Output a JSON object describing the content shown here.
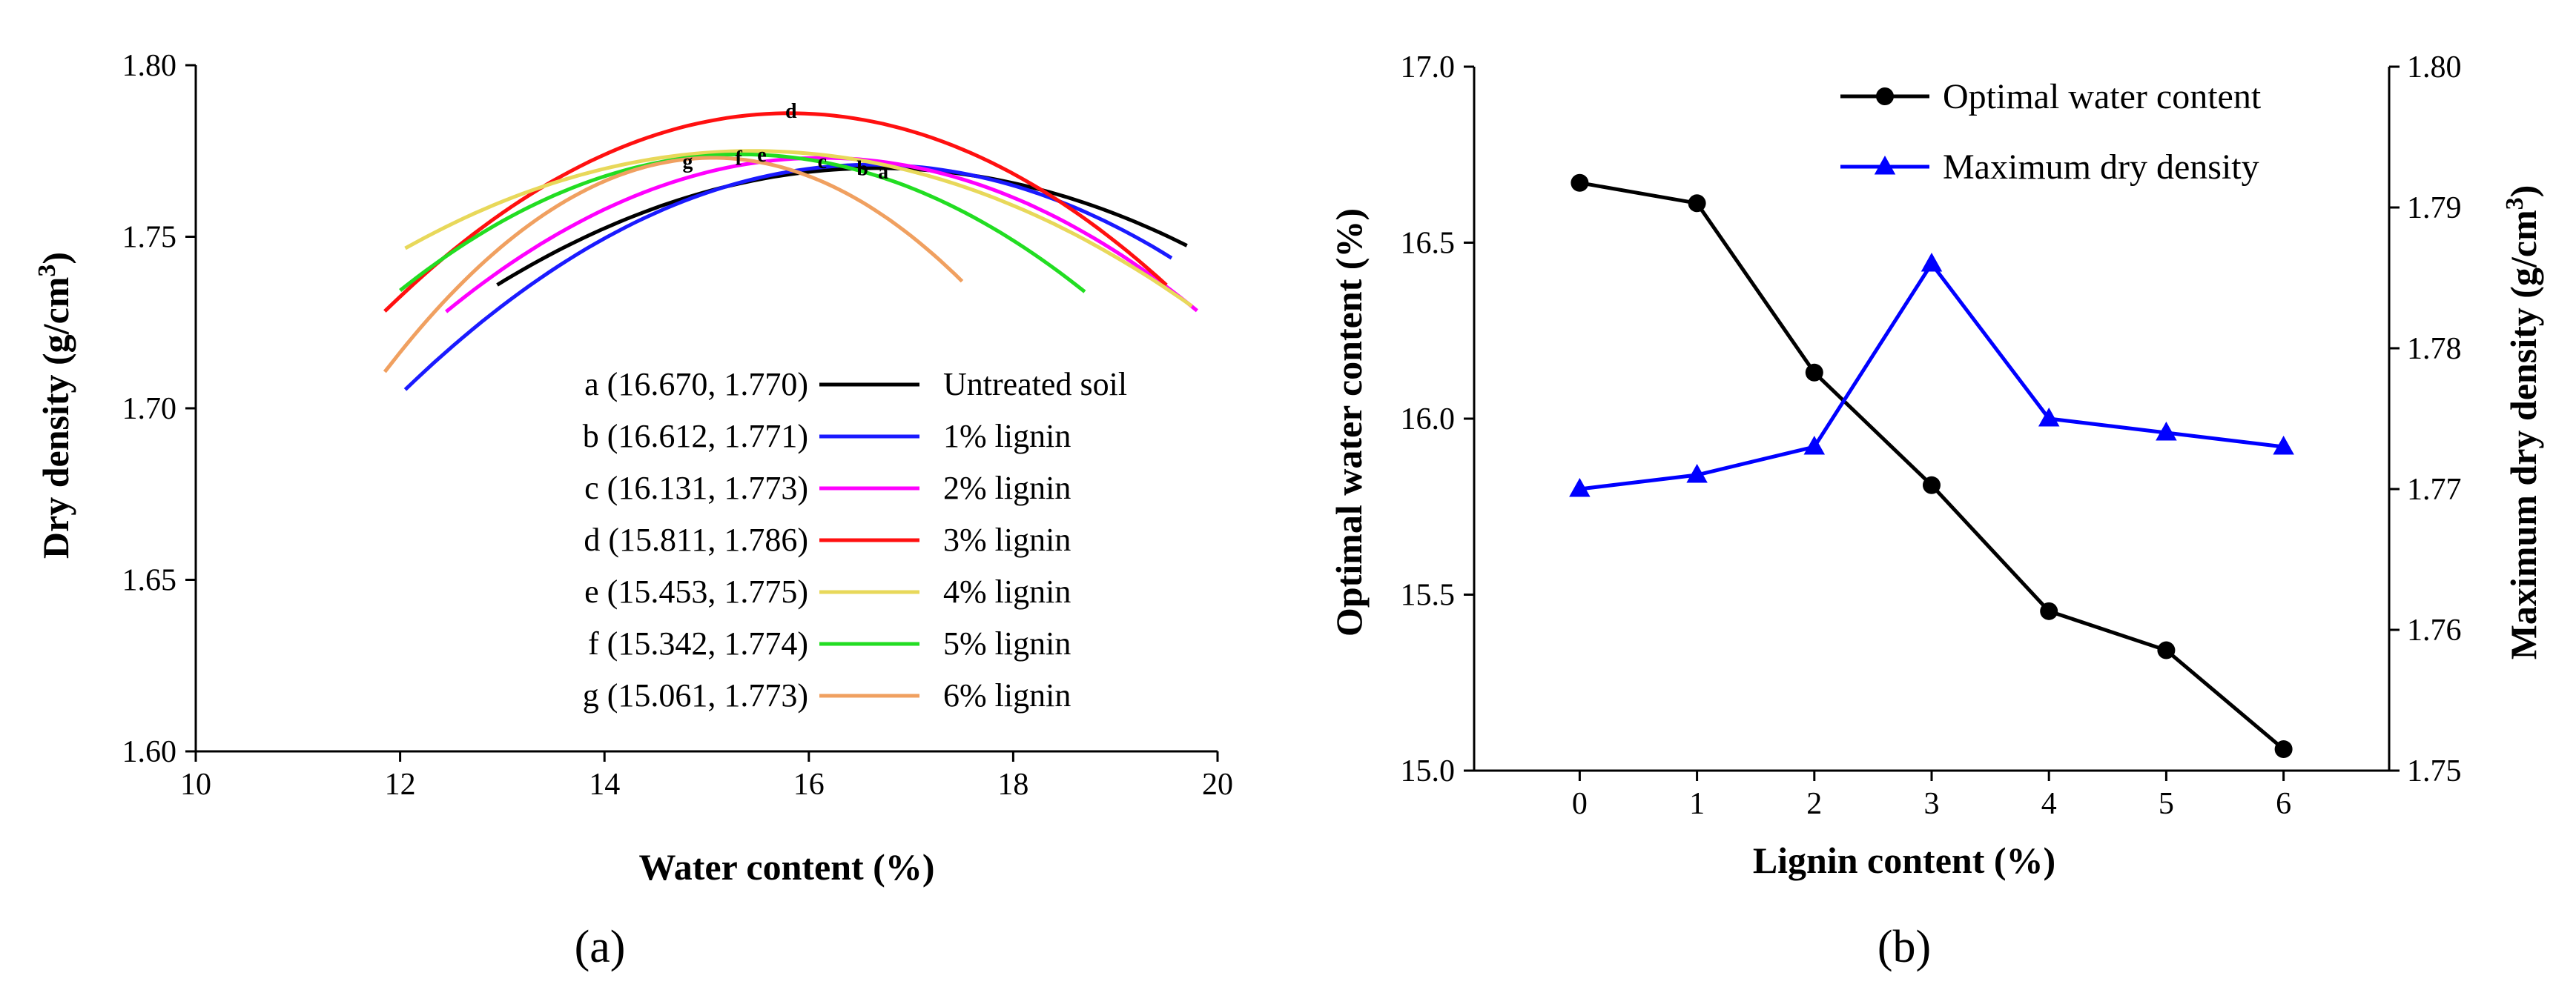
{
  "chart_data": [
    {
      "id": "a",
      "type": "line",
      "panel_label": "(a)",
      "xlabel": "Water content (%)",
      "ylabel": "Dry density (g/cm",
      "ylabel_sup": "3",
      "ylabel_end": ")",
      "xlim": [
        10,
        20
      ],
      "ylim": [
        1.6,
        1.8
      ],
      "xticks": [
        "10",
        "12",
        "14",
        "16",
        "18",
        "20"
      ],
      "yticks": [
        "1.60",
        "1.65",
        "1.70",
        "1.75",
        "1.80"
      ],
      "series": [
        {
          "name": "Untreated soil",
          "key": "a (16.670, 1.770)",
          "point_label": "a",
          "peak": [
            16.67,
            1.77
          ],
          "range": [
            12.95,
            19.7
          ],
          "curv": 0.00246,
          "color": "#000000"
        },
        {
          "name": "1% lignin",
          "key": "b (16.612, 1.771)",
          "point_label": "b",
          "peak": [
            16.612,
            1.771
          ],
          "range": [
            12.05,
            19.55
          ],
          "curv": 0.00315,
          "color": "#1a1aff"
        },
        {
          "name": "2% lignin",
          "key": "c (16.131, 1.773)",
          "point_label": "c",
          "peak": [
            16.131,
            1.773
          ],
          "range": [
            12.45,
            19.8
          ],
          "curv": 0.00331,
          "color": "#ff00ff"
        },
        {
          "name": "3% lignin",
          "key": "d (15.811, 1.786)",
          "point_label": "d",
          "peak": [
            15.811,
            1.786
          ],
          "range": [
            11.85,
            19.5
          ],
          "curv": 0.00368,
          "color": "#ff1010"
        },
        {
          "name": "4% lignin",
          "key": "e (15.453, 1.775)",
          "point_label": "e",
          "peak": [
            15.453,
            1.775
          ],
          "range": [
            12.05,
            19.75
          ],
          "curv": 0.00245,
          "color": "#e8d85a"
        },
        {
          "name": "5% lignin",
          "key": "f (15.342, 1.774)",
          "point_label": "f",
          "peak": [
            15.342,
            1.774
          ],
          "range": [
            12.0,
            18.7
          ],
          "curv": 0.00355,
          "color": "#22dd22"
        },
        {
          "name": "6% lignin",
          "key": "g (15.061, 1.773)",
          "point_label": "g",
          "peak": [
            15.061,
            1.773
          ],
          "range": [
            11.85,
            17.5
          ],
          "curv": 0.00605,
          "color": "#f0a060"
        }
      ]
    },
    {
      "id": "b",
      "type": "line",
      "panel_label": "(b)",
      "xlabel": "Lignin content (%)",
      "ylabel_left": "Optimal water content (%)",
      "ylabel_right": "Maximum dry density (g/cm",
      "ylabel_right_sup": "3",
      "ylabel_right_end": ")",
      "categories": [
        "0",
        "1",
        "2",
        "3",
        "4",
        "5",
        "6"
      ],
      "x": [
        0,
        1,
        2,
        3,
        4,
        5,
        6
      ],
      "xlim": [
        -0.9,
        6.9
      ],
      "ylim_left": [
        15.0,
        17.0
      ],
      "ylim_right": [
        1.75,
        1.8
      ],
      "yticks_left": [
        "15.0",
        "15.5",
        "16.0",
        "16.5",
        "17.0"
      ],
      "yticks_right": [
        "1.75",
        "1.76",
        "1.77",
        "1.78",
        "1.79",
        "1.80"
      ],
      "series": [
        {
          "name": "Optimal water content",
          "axis": "left",
          "marker": "circle",
          "color": "#000000",
          "values": [
            16.67,
            16.612,
            16.131,
            15.811,
            15.453,
            15.342,
            15.061
          ]
        },
        {
          "name": "Maximum dry density",
          "axis": "right",
          "marker": "triangle",
          "color": "#0000ff",
          "values": [
            1.77,
            1.771,
            1.773,
            1.786,
            1.775,
            1.774,
            1.773
          ]
        }
      ]
    }
  ]
}
